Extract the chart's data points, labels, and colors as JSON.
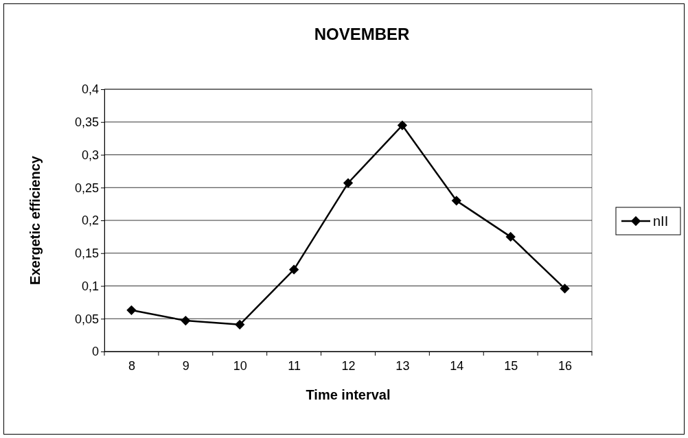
{
  "chart_data": {
    "type": "line",
    "title": "NOVEMBER",
    "xlabel": "Time interval",
    "ylabel": "Exergetic efficiency",
    "categories": [
      "8",
      "9",
      "10",
      "11",
      "12",
      "13",
      "14",
      "15",
      "16"
    ],
    "series": [
      {
        "name": "nII",
        "color": "#000000",
        "values": [
          0.063,
          0.047,
          0.041,
          0.125,
          0.257,
          0.345,
          0.23,
          0.175,
          0.096
        ]
      }
    ],
    "ylim": [
      0,
      0.4
    ],
    "yticks": [
      0,
      {
        "value": 0.05,
        "label": "0,05"
      },
      {
        "value": 0.1,
        "label": "0,1"
      },
      {
        "value": 0.15,
        "label": "0,15"
      },
      {
        "value": 0.2,
        "label": "0,2"
      },
      {
        "value": 0.25,
        "label": "0,25"
      },
      {
        "value": 0.3,
        "label": "0,3"
      },
      {
        "value": 0.35,
        "label": "0,35"
      },
      {
        "value": 0.4,
        "label": "0,4"
      }
    ],
    "grid": "y",
    "legend": "right",
    "marker": "diamond",
    "line_style": "solid"
  }
}
